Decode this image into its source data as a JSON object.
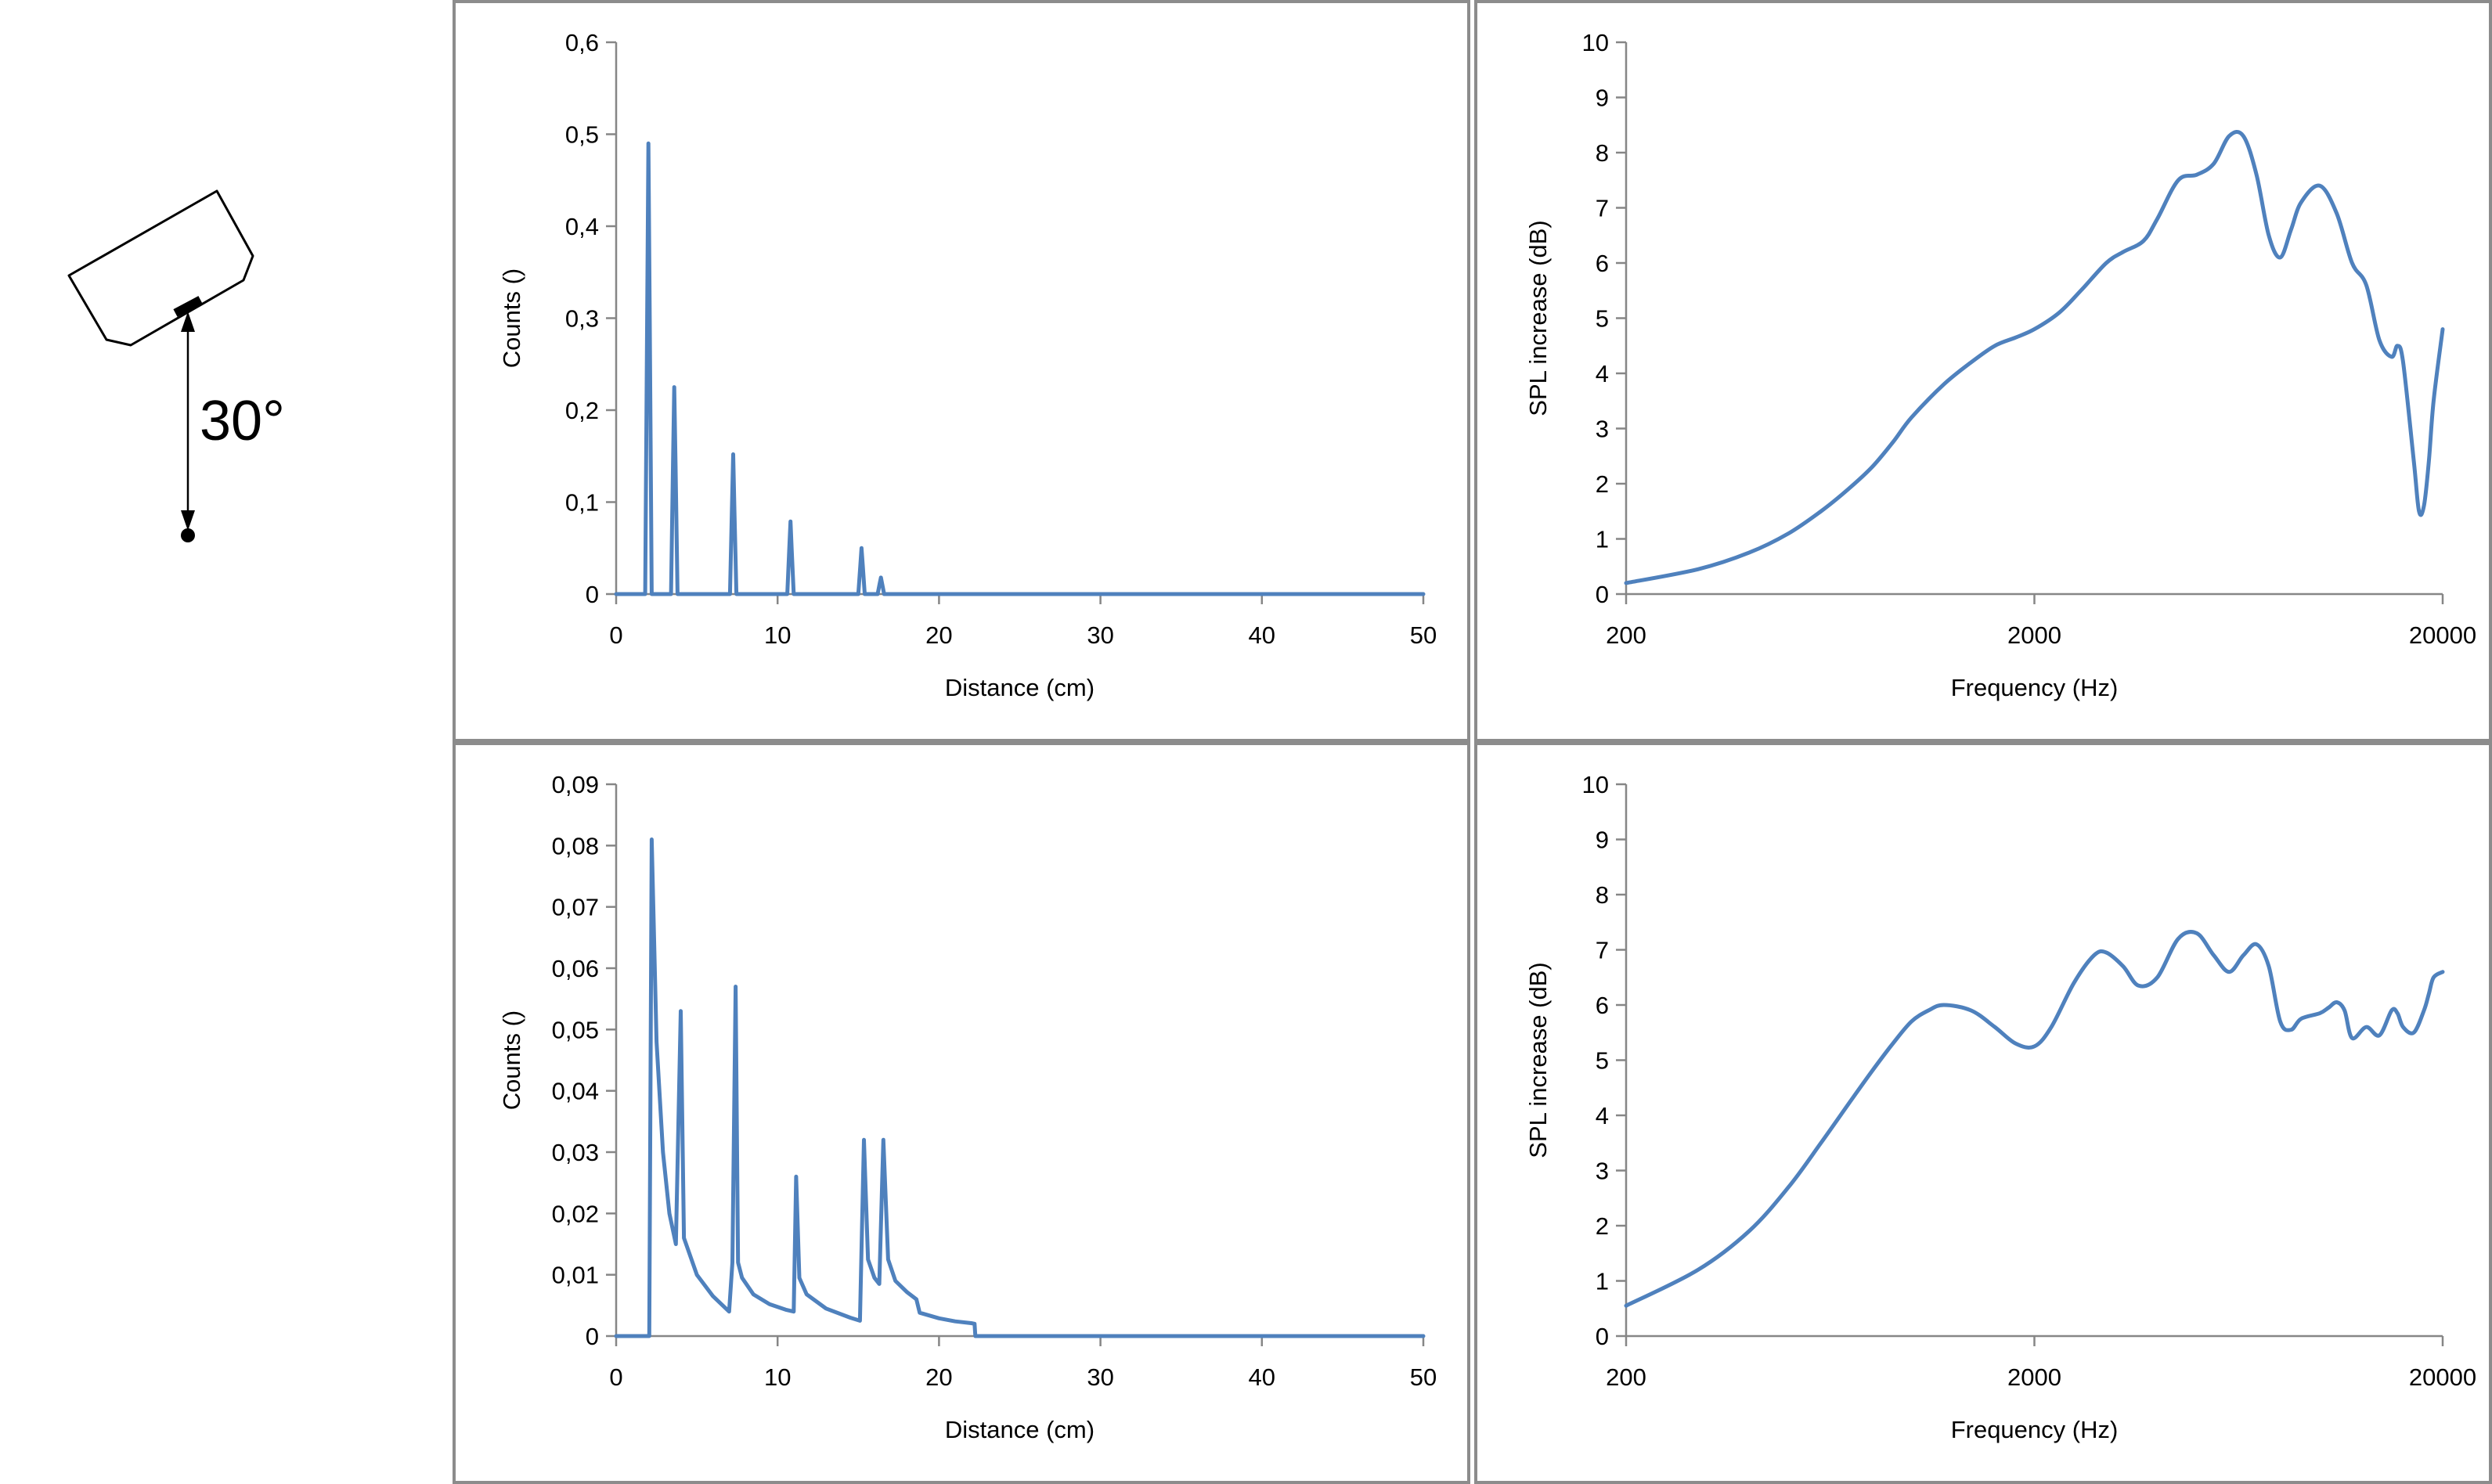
{
  "diagram": {
    "angle_label": "30°",
    "icon": "tilted-speaker-cabinet-icon"
  },
  "chart_data": [
    {
      "id": "counts-top",
      "type": "line",
      "xlabel": "Distance (cm)",
      "ylabel": "Counts ()",
      "xlim": [
        0,
        50
      ],
      "ylim": [
        0,
        0.6
      ],
      "xticks": [
        "0",
        "10",
        "20",
        "30",
        "40",
        "50"
      ],
      "yticks": [
        "0",
        "0,1",
        "0,2",
        "0,3",
        "0,4",
        "0,5",
        "0,6"
      ],
      "x": [
        0,
        1.8,
        1.92,
        2.0,
        2.08,
        2.2,
        3.4,
        3.52,
        3.6,
        3.68,
        3.8,
        7.05,
        7.17,
        7.25,
        7.33,
        7.45,
        10.6,
        10.72,
        10.8,
        10.88,
        11.0,
        15.0,
        15.12,
        15.2,
        15.28,
        15.4,
        16.2,
        16.32,
        16.4,
        16.48,
        16.6,
        50
      ],
      "y": [
        0,
        0,
        0.3,
        0.49,
        0.3,
        0,
        0,
        0.14,
        0.225,
        0.14,
        0,
        0,
        0.09,
        0.152,
        0.09,
        0,
        0,
        0.047,
        0.079,
        0.047,
        0,
        0,
        0.03,
        0.05,
        0.03,
        0,
        0,
        0.011,
        0.018,
        0.011,
        0,
        0
      ]
    },
    {
      "id": "spl-top",
      "type": "line",
      "xlabel": "Frequency (Hz)",
      "ylabel": "SPL increase (dB)",
      "xscale": "log",
      "xlim": [
        200,
        20000
      ],
      "ylim": [
        0,
        10
      ],
      "xticks": [
        "200",
        "2000",
        "20000"
      ],
      "yticks": [
        "0",
        "1",
        "2",
        "3",
        "4",
        "5",
        "6",
        "7",
        "8",
        "9",
        "10"
      ],
      "x": [
        200,
        300,
        400,
        500,
        600,
        700,
        800,
        900,
        1000,
        1200,
        1400,
        1600,
        1800,
        2000,
        2300,
        2600,
        3000,
        3300,
        3700,
        4000,
        4500,
        5000,
        5500,
        6000,
        6500,
        7000,
        7500,
        8000,
        8500,
        9000,
        10000,
        11000,
        12000,
        13000,
        14000,
        15000,
        15500,
        16000,
        17000,
        17500,
        18000,
        18500,
        19000,
        20000
      ],
      "y": [
        0.2,
        0.45,
        0.75,
        1.1,
        1.5,
        1.9,
        2.3,
        2.75,
        3.2,
        3.8,
        4.2,
        4.5,
        4.65,
        4.8,
        5.1,
        5.5,
        6.0,
        6.2,
        6.4,
        6.8,
        7.5,
        7.6,
        7.8,
        8.3,
        8.3,
        7.6,
        6.5,
        6.1,
        6.6,
        7.1,
        7.4,
        6.9,
        6.0,
        5.6,
        4.6,
        4.3,
        4.5,
        4.2,
        2.4,
        1.5,
        1.6,
        2.4,
        3.5,
        4.8
      ]
    },
    {
      "id": "counts-bottom",
      "type": "line",
      "xlabel": "Distance (cm)",
      "ylabel": "Counts ()",
      "xlim": [
        0,
        50
      ],
      "ylim": [
        0,
        0.09
      ],
      "xticks": [
        "0",
        "10",
        "20",
        "30",
        "40",
        "50"
      ],
      "yticks": [
        "0",
        "0,01",
        "0,02",
        "0,03",
        "0,04",
        "0,05",
        "0,06",
        "0,07",
        "0,08",
        "0,09"
      ],
      "x": [
        0,
        2.0,
        2.05,
        2.2,
        2.5,
        2.9,
        3.3,
        3.7,
        3.85,
        4.0,
        4.2,
        5.0,
        6.0,
        7.0,
        7.2,
        7.4,
        7.55,
        7.8,
        8.5,
        9.5,
        10.5,
        11.0,
        11.15,
        11.35,
        11.8,
        13.0,
        14.5,
        15.1,
        15.35,
        15.6,
        16.0,
        16.3,
        16.55,
        16.85,
        17.3,
        18.0,
        18.6,
        18.8,
        20.0,
        21.0,
        22.0,
        22.2,
        22.25,
        23.0,
        50
      ],
      "y": [
        0,
        0,
        0.0,
        0.081,
        0.048,
        0.03,
        0.02,
        0.015,
        0.034,
        0.053,
        0.016,
        0.01,
        0.0065,
        0.004,
        0.012,
        0.057,
        0.012,
        0.0095,
        0.0068,
        0.0052,
        0.0043,
        0.004,
        0.026,
        0.0095,
        0.0068,
        0.0045,
        0.003,
        0.0025,
        0.032,
        0.0125,
        0.0095,
        0.0085,
        0.032,
        0.0125,
        0.009,
        0.0072,
        0.006,
        0.0038,
        0.0029,
        0.0024,
        0.0021,
        0.002,
        0,
        0,
        0
      ]
    },
    {
      "id": "spl-bottom",
      "type": "line",
      "xlabel": "Frequency (Hz)",
      "ylabel": "SPL increase (dB)",
      "xscale": "log",
      "xlim": [
        200,
        20000
      ],
      "ylim": [
        0,
        10
      ],
      "xticks": [
        "200",
        "2000",
        "20000"
      ],
      "yticks": [
        "0",
        "1",
        "2",
        "3",
        "4",
        "5",
        "6",
        "7",
        "8",
        "9",
        "10"
      ],
      "x": [
        200,
        300,
        400,
        500,
        600,
        700,
        800,
        900,
        1000,
        1100,
        1200,
        1400,
        1600,
        1800,
        2000,
        2200,
        2500,
        2800,
        3000,
        3300,
        3600,
        4000,
        4500,
        5000,
        5500,
        6000,
        6500,
        7000,
        7500,
        8000,
        8500,
        9000,
        10000,
        10500,
        11000,
        11500,
        12000,
        13000,
        14000,
        15000,
        15500,
        16000,
        17000,
        18000,
        18500,
        19000,
        20000
      ],
      "y": [
        0.55,
        1.2,
        1.9,
        2.7,
        3.5,
        4.2,
        4.8,
        5.3,
        5.7,
        5.9,
        6.0,
        5.9,
        5.6,
        5.3,
        5.25,
        5.6,
        6.4,
        6.9,
        6.95,
        6.7,
        6.35,
        6.5,
        7.2,
        7.3,
        6.9,
        6.6,
        6.9,
        7.1,
        6.7,
        5.7,
        5.55,
        5.75,
        5.85,
        5.95,
        6.05,
        5.9,
        5.4,
        5.6,
        5.45,
        5.9,
        5.85,
        5.6,
        5.5,
        5.9,
        6.2,
        6.5,
        6.6
      ]
    }
  ]
}
